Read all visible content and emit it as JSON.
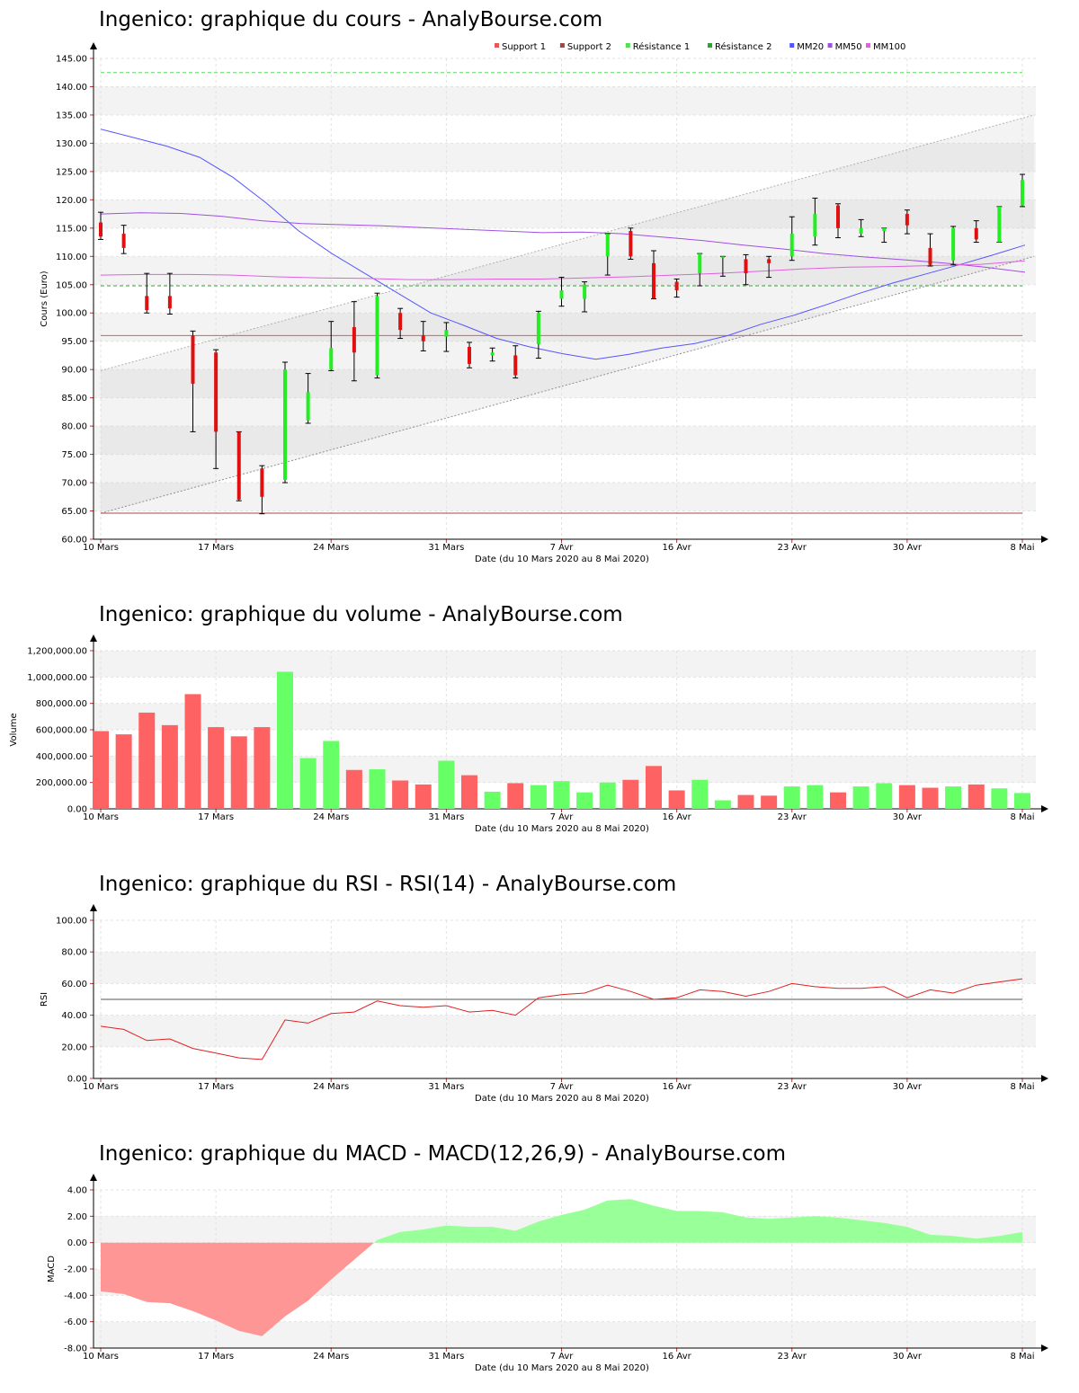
{
  "xlabel": "Date (du 10 Mars 2020 au 8 Mai 2020)",
  "x_ticks": [
    "10 Mars",
    "17 Mars",
    "24 Mars",
    "31 Mars",
    "7 Avr",
    "16 Avr",
    "23 Avr",
    "30 Avr",
    "8 Mai"
  ],
  "legend": [
    {
      "label": "Support 1",
      "color": "#e05a5a"
    },
    {
      "label": "Support 2",
      "color": "#a04848"
    },
    {
      "label": "Résistance 1",
      "color": "#55dd55"
    },
    {
      "label": "Résistance 2",
      "color": "#33a033"
    },
    {
      "label": "MM20",
      "color": "#5555ff"
    },
    {
      "label": "MM50",
      "color": "#a050e0"
    },
    {
      "label": "MM100",
      "color": "#e060e0"
    }
  ],
  "titles": {
    "price": "Ingenico: graphique du cours - AnalyBourse.com",
    "volume": "Ingenico: graphique du volume - AnalyBourse.com",
    "rsi": "Ingenico: graphique du RSI - RSI(14) - AnalyBourse.com",
    "macd": "Ingenico: graphique du MACD - MACD(12,26,9) - AnalyBourse.com"
  },
  "chart_data": [
    {
      "id": "price",
      "type": "candlestick",
      "ylabel": "Cours (Euro)",
      "ylim": [
        60,
        145
      ],
      "yticks": [
        "60.00",
        "65.00",
        "70.00",
        "75.00",
        "80.00",
        "85.00",
        "90.00",
        "95.00",
        "100.00",
        "105.00",
        "110.00",
        "115.00",
        "120.00",
        "125.00",
        "130.00",
        "135.00",
        "140.00",
        "145.00"
      ],
      "candles": [
        {
          "o": 116.0,
          "c": 113.5,
          "h": 117.8,
          "l": 113.0
        },
        {
          "o": 114.0,
          "c": 111.5,
          "h": 115.5,
          "l": 110.5
        },
        {
          "o": 103.0,
          "c": 100.5,
          "h": 107.0,
          "l": 100.0
        },
        {
          "o": 103.0,
          "c": 100.8,
          "h": 107.0,
          "l": 99.8
        },
        {
          "o": 96.0,
          "c": 87.5,
          "h": 96.8,
          "l": 79.0
        },
        {
          "o": 93.0,
          "c": 79.0,
          "h": 93.5,
          "l": 72.5
        },
        {
          "o": 79.0,
          "c": 67.0,
          "h": 79.0,
          "l": 66.8
        },
        {
          "o": 72.5,
          "c": 67.5,
          "h": 73.0,
          "l": 64.5
        },
        {
          "o": 70.5,
          "c": 90.0,
          "h": 91.3,
          "l": 70.0
        },
        {
          "o": 81.0,
          "c": 86.0,
          "h": 89.3,
          "l": 80.5
        },
        {
          "o": 90.0,
          "c": 93.8,
          "h": 98.5,
          "l": 89.8
        },
        {
          "o": 97.5,
          "c": 93.0,
          "h": 102.0,
          "l": 88.0
        },
        {
          "o": 89.0,
          "c": 103.0,
          "h": 103.5,
          "l": 88.5
        },
        {
          "o": 100.0,
          "c": 97.0,
          "h": 100.8,
          "l": 95.5
        },
        {
          "o": 96.0,
          "c": 95.0,
          "h": 98.5,
          "l": 93.3
        },
        {
          "o": 95.8,
          "c": 97.0,
          "h": 98.3,
          "l": 93.2
        },
        {
          "o": 94.0,
          "c": 91.0,
          "h": 94.8,
          "l": 90.3
        },
        {
          "o": 92.5,
          "c": 93.0,
          "h": 93.8,
          "l": 91.5
        },
        {
          "o": 92.5,
          "c": 89.0,
          "h": 94.2,
          "l": 88.5
        },
        {
          "o": 94.5,
          "c": 100.0,
          "h": 100.3,
          "l": 92.0
        },
        {
          "o": 102.5,
          "c": 104.0,
          "h": 106.3,
          "l": 101.2
        },
        {
          "o": 102.5,
          "c": 105.0,
          "h": 105.5,
          "l": 100.2
        },
        {
          "o": 110.0,
          "c": 114.0,
          "h": 114.0,
          "l": 106.7
        },
        {
          "o": 114.5,
          "c": 110.0,
          "h": 115.0,
          "l": 109.5
        },
        {
          "o": 108.8,
          "c": 102.5,
          "h": 111.0,
          "l": 102.5
        },
        {
          "o": 105.5,
          "c": 104.0,
          "h": 106.0,
          "l": 102.8
        },
        {
          "o": 107.0,
          "c": 110.5,
          "h": 110.5,
          "l": 104.8
        },
        {
          "o": 110.0,
          "c": 110.0,
          "h": 110.0,
          "l": 106.5
        },
        {
          "o": 109.5,
          "c": 107.0,
          "h": 110.3,
          "l": 105.0
        },
        {
          "o": 109.5,
          "c": 108.8,
          "h": 110.0,
          "l": 106.3
        },
        {
          "o": 110.0,
          "c": 114.0,
          "h": 117.0,
          "l": 109.3
        },
        {
          "o": 113.5,
          "c": 117.5,
          "h": 120.3,
          "l": 112.0
        },
        {
          "o": 119.0,
          "c": 115.0,
          "h": 119.3,
          "l": 113.3
        },
        {
          "o": 114.0,
          "c": 115.0,
          "h": 116.5,
          "l": 113.5
        },
        {
          "o": 114.5,
          "c": 115.0,
          "h": 115.0,
          "l": 112.5
        },
        {
          "o": 117.5,
          "c": 115.5,
          "h": 118.2,
          "l": 114.0
        },
        {
          "o": 111.5,
          "c": 108.5,
          "h": 114.0,
          "l": 108.3
        },
        {
          "o": 109.3,
          "c": 115.0,
          "h": 115.3,
          "l": 108.5
        },
        {
          "o": 115.0,
          "c": 113.0,
          "h": 116.3,
          "l": 112.5
        },
        {
          "o": 112.5,
          "c": 118.8,
          "h": 118.8,
          "l": 112.5
        },
        {
          "o": 119.0,
          "c": 123.5,
          "h": 124.5,
          "l": 118.8
        }
      ],
      "support1": 96.0,
      "support2": 64.6,
      "resistance1": 142.5,
      "resistance2": 104.8,
      "channel_upper": [
        89.8,
        135.0
      ],
      "channel_lower": [
        64.6,
        110.0
      ],
      "mm20": [
        132.5,
        131.0,
        129.5,
        127.5,
        124.0,
        119.5,
        114.5,
        110.5,
        107.0,
        103.5,
        100.0,
        97.8,
        95.5,
        94.0,
        92.8,
        91.8,
        92.7,
        93.8,
        94.6,
        96.0,
        98.0,
        99.6,
        101.5,
        103.5,
        105.3,
        106.9,
        108.5,
        110.2,
        112.0
      ],
      "mm50": [
        117.5,
        117.7,
        117.6,
        117.1,
        116.3,
        115.8,
        115.6,
        115.4,
        115.1,
        114.8,
        114.5,
        114.2,
        114.3,
        114.0,
        113.4,
        112.8,
        112.0,
        111.3,
        110.5,
        109.9,
        109.4,
        108.8,
        108.1,
        107.2
      ],
      "mm100": [
        106.7,
        106.8,
        106.8,
        106.7,
        106.4,
        106.2,
        106.1,
        105.9,
        105.9,
        106.0,
        106.0,
        106.2,
        106.4,
        106.7,
        107.0,
        107.4,
        107.8,
        108.1,
        108.2,
        108.4,
        108.6,
        109.2
      ]
    },
    {
      "id": "volume",
      "type": "bar",
      "ylabel": "Volume",
      "ylim": [
        0,
        1200000
      ],
      "yticks": [
        "0.00",
        "200,000.00",
        "400,000.00",
        "600,000.00",
        "800,000.00",
        "1,000,000.00",
        "1,200,000.00"
      ],
      "values": [
        590000,
        565000,
        730000,
        635000,
        870000,
        620000,
        550000,
        620000,
        1040000,
        385000,
        515000,
        295000,
        300000,
        215000,
        185000,
        365000,
        255000,
        130000,
        195000,
        180000,
        210000,
        125000,
        200000,
        220000,
        325000,
        140000,
        220000,
        65000,
        105000,
        100000,
        170000,
        180000,
        125000,
        170000,
        195000,
        180000,
        160000,
        170000,
        185000,
        155000,
        120000
      ],
      "colors": [
        "r",
        "r",
        "r",
        "r",
        "r",
        "r",
        "r",
        "r",
        "g",
        "g",
        "g",
        "r",
        "g",
        "r",
        "r",
        "g",
        "r",
        "g",
        "r",
        "g",
        "g",
        "g",
        "g",
        "r",
        "r",
        "r",
        "g",
        "g",
        "r",
        "r",
        "g",
        "g",
        "r",
        "g",
        "g",
        "r",
        "r",
        "g",
        "r",
        "g",
        "g"
      ]
    },
    {
      "id": "rsi",
      "type": "line",
      "ylabel": "RSI",
      "ylim": [
        0,
        100
      ],
      "yticks": [
        "0.00",
        "20.00",
        "40.00",
        "60.00",
        "80.00",
        "100.00"
      ],
      "reference": 50,
      "values": [
        33,
        31,
        24,
        25,
        19,
        16,
        13,
        12,
        37,
        35,
        41,
        42,
        49,
        46,
        45,
        46,
        42,
        43,
        40,
        51,
        53,
        54,
        59,
        55,
        50,
        51,
        56,
        55,
        52,
        55,
        60,
        58,
        57,
        57,
        58,
        51,
        56,
        54,
        59,
        61,
        63
      ]
    },
    {
      "id": "macd",
      "type": "area",
      "ylabel": "MACD",
      "ylim": [
        -8,
        4
      ],
      "yticks": [
        "-8.00",
        "-6.00",
        "-4.00",
        "-2.00",
        "0.00",
        "2.00",
        "4.00"
      ],
      "values": [
        -3.7,
        -3.9,
        -4.5,
        -4.6,
        -5.2,
        -5.9,
        -6.7,
        -7.1,
        -5.6,
        -4.4,
        -2.8,
        -1.3,
        0.2,
        0.8,
        1.0,
        1.3,
        1.2,
        1.2,
        0.9,
        1.6,
        2.1,
        2.5,
        3.2,
        3.3,
        2.8,
        2.4,
        2.4,
        2.3,
        1.9,
        1.8,
        1.9,
        2.0,
        1.9,
        1.7,
        1.5,
        1.2,
        0.6,
        0.5,
        0.3,
        0.5,
        0.8
      ]
    }
  ]
}
